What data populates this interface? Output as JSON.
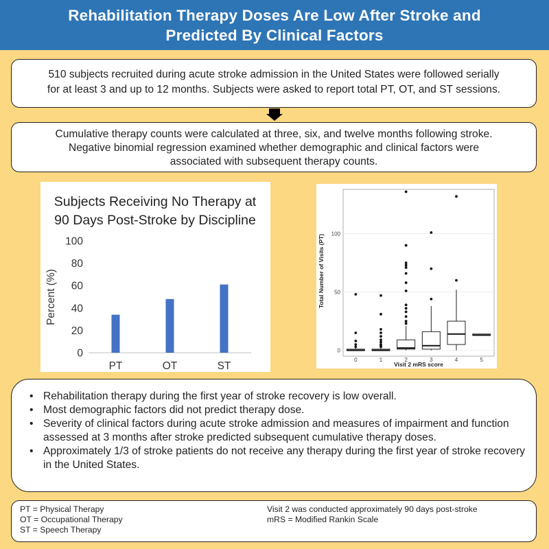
{
  "header": {
    "title_line1": "Rehabilitation Therapy Doses Are Low After Stroke and",
    "title_line2": "Predicted By Clinical Factors"
  },
  "box1": {
    "line1": "510 subjects recruited during acute stroke admission in the United States were followed serially",
    "line2": "for at least 3 and up to 12 months. Subjects were asked to report total PT, OT, and ST sessions."
  },
  "box2": {
    "line1": "Cumulative therapy counts were calculated at three, six, and twelve months following stroke.",
    "line2": "Negative binomial regression examined whether demographic and clinical factors were",
    "line3": "associated with subsequent therapy counts."
  },
  "chart_data": [
    {
      "type": "bar",
      "title_lines": [
        "Subjects Receiving No Therapy at",
        "90 Days Post-Stroke by Discipline"
      ],
      "categories": [
        "PT",
        "OT",
        "ST"
      ],
      "values": [
        34,
        48,
        61
      ],
      "xlabel": "",
      "ylabel": "Percent (%)",
      "ylim": [
        0,
        100
      ],
      "yticks": [
        0,
        20,
        40,
        60,
        80,
        100
      ],
      "grid": false,
      "color": "#4472c4"
    },
    {
      "type": "box",
      "xlabel": "Visit 2 mRS score",
      "ylabel": "Total Number of Visits (PT)",
      "categories": [
        "0",
        "1",
        "2",
        "3",
        "4",
        "5"
      ],
      "ylim": [
        -5,
        138
      ],
      "yticks": [
        0,
        50,
        100
      ],
      "boxes": [
        {
          "cat": "0",
          "q1": 0,
          "median": 0,
          "q3": 1,
          "whisker_low": 0,
          "whisker_high": 2,
          "outliers": [
            48,
            15,
            8,
            5,
            3
          ]
        },
        {
          "cat": "1",
          "q1": 0,
          "median": 0,
          "q3": 1,
          "whisker_low": 0,
          "whisker_high": 2,
          "outliers": [
            47,
            31,
            18,
            15,
            12,
            9,
            7,
            5,
            4,
            3
          ]
        },
        {
          "cat": "2",
          "q1": 1,
          "median": 2,
          "q3": 9,
          "whisker_low": 0,
          "whisker_high": 21,
          "outliers": [
            136,
            90,
            75,
            73,
            71,
            66,
            58,
            51,
            39,
            36,
            33,
            29,
            25,
            23
          ]
        },
        {
          "cat": "3",
          "q1": 1,
          "median": 4,
          "q3": 16,
          "whisker_low": 0,
          "whisker_high": 38,
          "outliers": [
            101,
            70,
            44
          ]
        },
        {
          "cat": "4",
          "q1": 5,
          "median": 14,
          "q3": 25,
          "whisker_low": 0,
          "whisker_high": 52,
          "outliers": [
            132,
            60
          ]
        },
        {
          "cat": "5",
          "q1": 13,
          "median": 13,
          "q3": 14,
          "whisker_low": 13,
          "whisker_high": 14,
          "outliers": []
        }
      ]
    }
  ],
  "findings": [
    "Rehabilitation therapy during the first year of stroke recovery is low overall.",
    "Most demographic factors did not predict therapy dose.",
    "Severity of clinical factors during acute stroke admission and measures of impairment and function assessed at 3 months after stroke predicted subsequent cumulative therapy doses.",
    "Approximately 1/3 of stroke patients do not receive any therapy during the first year of stroke recovery in the United States."
  ],
  "bullet": "•",
  "footnotes": {
    "left": [
      "PT = Physical Therapy",
      "OT = Occupational Therapy",
      "ST = Speech Therapy"
    ],
    "right": [
      "Visit 2 was conducted approximately 90 days post-stroke",
      "mRS = Modified Rankin Scale"
    ]
  }
}
